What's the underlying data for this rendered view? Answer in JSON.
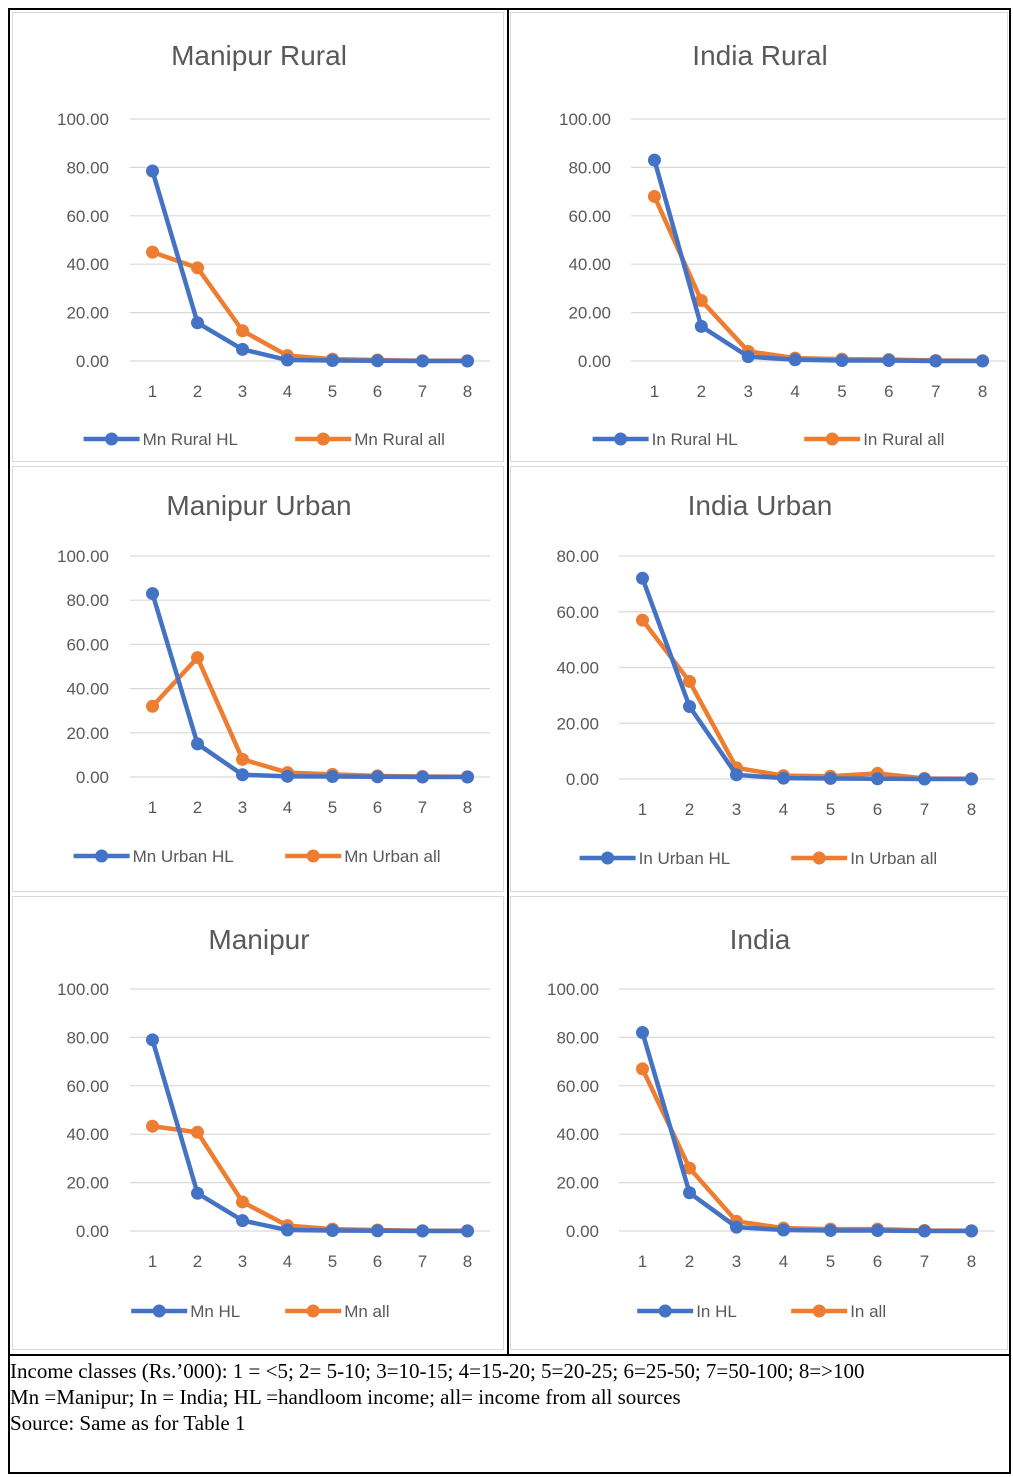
{
  "chart_data": [
    {
      "type": "line",
      "title": "Manipur Rural",
      "categories": [
        "1",
        "2",
        "3",
        "4",
        "5",
        "6",
        "7",
        "8"
      ],
      "y_ticks": [
        "0.00",
        "20.00",
        "40.00",
        "60.00",
        "80.00",
        "100.00"
      ],
      "ylim": [
        0,
        100
      ],
      "grid": true,
      "legend_position": "bottom",
      "series": [
        {
          "name": "Mn Rural HL",
          "color": "#4472C4",
          "values": [
            78.5,
            15.8,
            4.8,
            0.4,
            0.2,
            0.1,
            0.0,
            0.0
          ]
        },
        {
          "name": "Mn Rural all",
          "color": "#ED7D31",
          "values": [
            45.0,
            38.5,
            12.5,
            2.2,
            0.8,
            0.4,
            0.1,
            0.1
          ]
        }
      ]
    },
    {
      "type": "line",
      "title": "India Rural",
      "categories": [
        "1",
        "2",
        "3",
        "4",
        "5",
        "6",
        "7",
        "8"
      ],
      "y_ticks": [
        "0.00",
        "20.00",
        "40.00",
        "60.00",
        "80.00",
        "100.00"
      ],
      "ylim": [
        0,
        100
      ],
      "grid": true,
      "legend_position": "bottom",
      "series": [
        {
          "name": "In Rural HL",
          "color": "#4472C4",
          "values": [
            83.0,
            14.3,
            1.8,
            0.5,
            0.2,
            0.2,
            0.0,
            0.0
          ]
        },
        {
          "name": "In Rural all",
          "color": "#ED7D31",
          "values": [
            68.0,
            25.0,
            4.0,
            1.2,
            0.8,
            0.6,
            0.2,
            0.1
          ]
        }
      ]
    },
    {
      "type": "line",
      "title": "Manipur Urban",
      "categories": [
        "1",
        "2",
        "3",
        "4",
        "5",
        "6",
        "7",
        "8"
      ],
      "y_ticks": [
        "0.00",
        "20.00",
        "40.00",
        "60.00",
        "80.00",
        "100.00"
      ],
      "ylim": [
        0,
        100
      ],
      "grid": true,
      "legend_position": "bottom",
      "series": [
        {
          "name": "Mn Urban HL",
          "color": "#4472C4",
          "values": [
            83.0,
            15.0,
            1.0,
            0.3,
            0.2,
            0.1,
            0.0,
            0.0
          ]
        },
        {
          "name": "Mn Urban all",
          "color": "#ED7D31",
          "values": [
            32.0,
            54.0,
            8.0,
            2.0,
            1.2,
            0.5,
            0.2,
            0.1
          ]
        }
      ]
    },
    {
      "type": "line",
      "title": "India Urban",
      "categories": [
        "1",
        "2",
        "3",
        "4",
        "5",
        "6",
        "7",
        "8"
      ],
      "y_ticks": [
        "0.00",
        "20.00",
        "40.00",
        "60.00",
        "80.00"
      ],
      "ylim": [
        0,
        80
      ],
      "grid": true,
      "legend_position": "bottom",
      "series": [
        {
          "name": "In Urban HL",
          "color": "#4472C4",
          "values": [
            72.0,
            26.0,
            1.5,
            0.3,
            0.2,
            0.1,
            0.0,
            0.0
          ]
        },
        {
          "name": "In Urban all",
          "color": "#ED7D31",
          "values": [
            57.0,
            35.0,
            4.0,
            1.2,
            1.0,
            2.0,
            0.2,
            0.1
          ]
        }
      ]
    },
    {
      "type": "line",
      "title": "Manipur",
      "categories": [
        "1",
        "2",
        "3",
        "4",
        "5",
        "6",
        "7",
        "8"
      ],
      "y_ticks": [
        "0.00",
        "20.00",
        "40.00",
        "60.00",
        "80.00",
        "100.00"
      ],
      "ylim": [
        0,
        100
      ],
      "grid": true,
      "legend_position": "bottom",
      "series": [
        {
          "name": "Mn HL",
          "color": "#4472C4",
          "values": [
            79.0,
            15.6,
            4.3,
            0.4,
            0.2,
            0.1,
            0.0,
            0.0
          ]
        },
        {
          "name": "Mn all",
          "color": "#ED7D31",
          "values": [
            43.3,
            40.8,
            12.0,
            2.2,
            0.8,
            0.4,
            0.1,
            0.1
          ]
        }
      ]
    },
    {
      "type": "line",
      "title": "India",
      "categories": [
        "1",
        "2",
        "3",
        "4",
        "5",
        "6",
        "7",
        "8"
      ],
      "y_ticks": [
        "0.00",
        "20.00",
        "40.00",
        "60.00",
        "80.00",
        "100.00"
      ],
      "ylim": [
        0,
        100
      ],
      "grid": true,
      "legend_position": "bottom",
      "series": [
        {
          "name": "In HL",
          "color": "#4472C4",
          "values": [
            82.0,
            15.8,
            1.6,
            0.4,
            0.2,
            0.2,
            0.0,
            0.0
          ]
        },
        {
          "name": "In all",
          "color": "#ED7D31",
          "values": [
            67.0,
            26.0,
            4.0,
            1.2,
            0.8,
            0.8,
            0.2,
            0.1
          ]
        }
      ]
    }
  ],
  "notes": {
    "income_classes": "Income classes (Rs.’000): 1 = <5; 2= 5-10; 3=10-15; 4=15-20; 5=20-25; 6=25-50; 7=50-100; 8=>100",
    "abbreviations": "Mn =Manipur; In = India; HL =handloom income; all= income from all sources",
    "source": "Source: Same as for Table 1"
  }
}
